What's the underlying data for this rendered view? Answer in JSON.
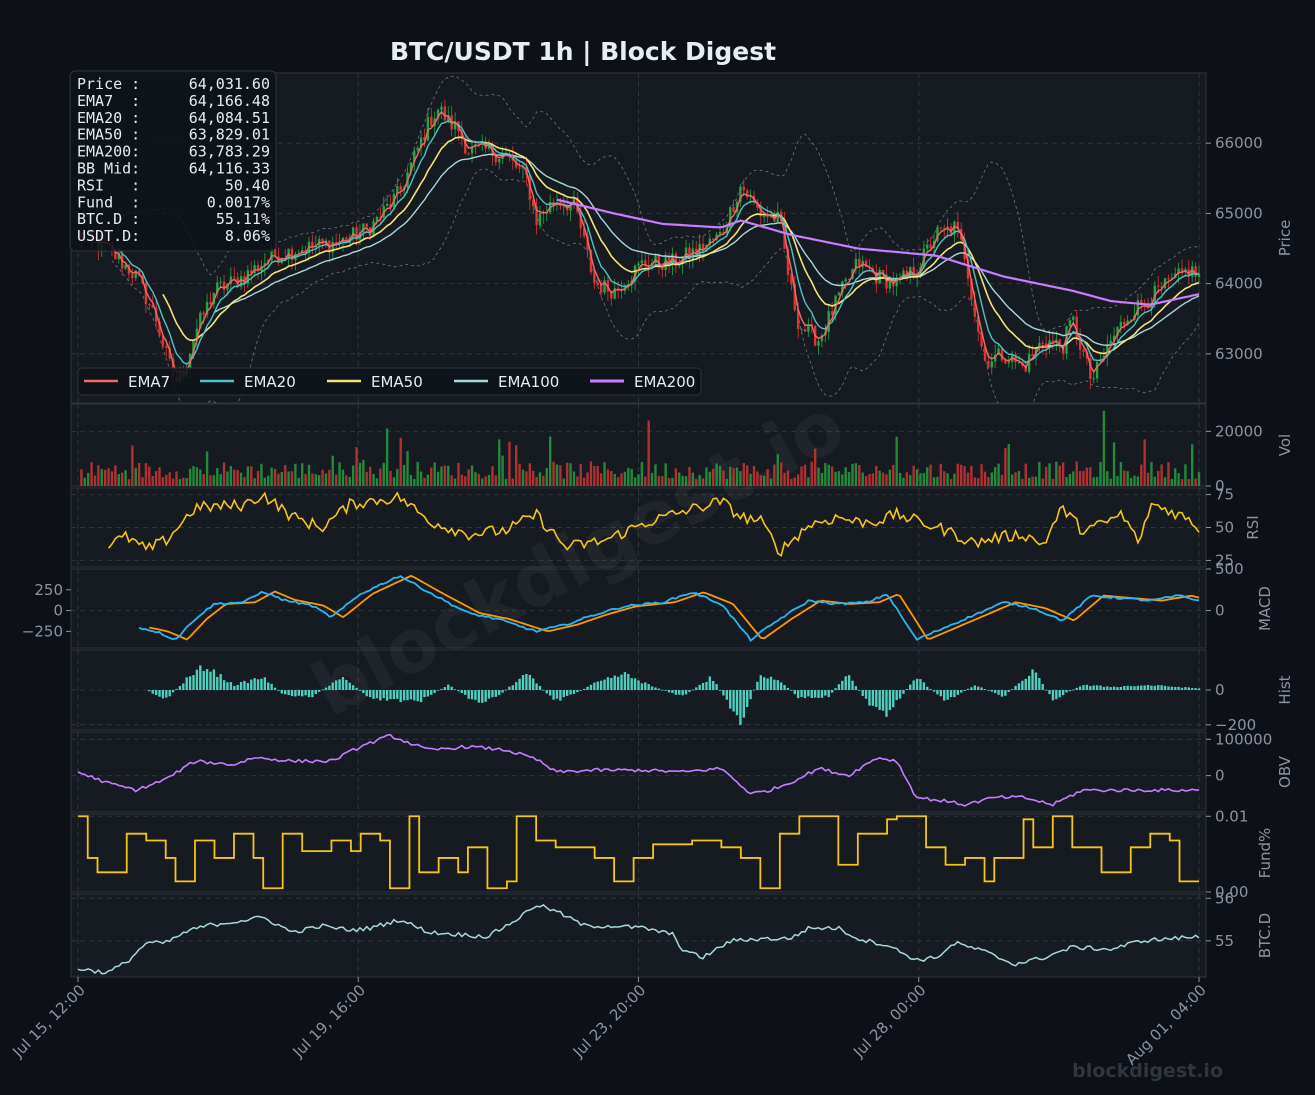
{
  "chart_data": {
    "type": "line",
    "title": "BTC/USDT  1h  |  Block Digest",
    "watermark": "blockdigest.io",
    "footer": "blockdigest.io",
    "x_ticks": [
      "Jul 15, 12:00",
      "Jul 19, 16:00",
      "Jul 23, 20:00",
      "Jul 28, 00:00",
      "Aug 01, 04:00"
    ],
    "info_box": [
      {
        "label": "Price :",
        "value": "64,031.60"
      },
      {
        "label": "EMA7  :",
        "value": "64,166.48"
      },
      {
        "label": "EMA20 :",
        "value": "64,084.51"
      },
      {
        "label": "EMA50 :",
        "value": "63,829.01"
      },
      {
        "label": "EMA200:",
        "value": "63,783.29"
      },
      {
        "label": "BB Mid:",
        "value": "64,116.33"
      },
      {
        "label": "RSI   :",
        "value": "50.40"
      },
      {
        "label": "Fund  :",
        "value": "0.0017%"
      },
      {
        "label": "BTC.D :",
        "value": "55.11%"
      },
      {
        "label": "USDT.D:",
        "value": "8.06%"
      }
    ],
    "legend": [
      {
        "name": "EMA7",
        "color": "#f06a6a"
      },
      {
        "name": "EMA20",
        "color": "#4fc3c3"
      },
      {
        "name": "EMA50",
        "color": "#f5e27a"
      },
      {
        "name": "EMA100",
        "color": "#a8d8d8"
      },
      {
        "name": "EMA200",
        "color": "#c77dff"
      }
    ],
    "panels": [
      {
        "key": "price",
        "ylabel": "Price",
        "ylim": [
          62300,
          67000
        ],
        "ticks": [
          "63000",
          "64000",
          "65000",
          "66000"
        ],
        "side": "right"
      },
      {
        "key": "vol",
        "ylabel": "Vol",
        "ylim": [
          0,
          30000
        ],
        "ticks": [
          "0",
          "20000"
        ],
        "side": "right"
      },
      {
        "key": "rsi",
        "ylabel": "RSI",
        "ylim": [
          20,
          80
        ],
        "ticks": [
          "25",
          "50",
          "75"
        ],
        "side": "right"
      },
      {
        "key": "macd",
        "ylabel": "MACD",
        "ylim": [
          -450,
          500
        ],
        "ticks": [
          "0",
          "500"
        ],
        "left_ticks": [
          "250",
          "0",
          "−250"
        ],
        "side": "right"
      },
      {
        "key": "hist",
        "ylabel": "Hist",
        "ylim": [
          -230,
          230
        ],
        "ticks": [
          "0",
          "−200"
        ],
        "side": "right"
      },
      {
        "key": "obv",
        "ylabel": "OBV",
        "ylim": [
          -100000,
          120000
        ],
        "ticks": [
          "100000",
          "0"
        ],
        "side": "right"
      },
      {
        "key": "fund",
        "ylabel": "Fund%",
        "ylim": [
          0,
          0.0103
        ],
        "ticks": [
          "0.01",
          "0.00"
        ],
        "side": "right"
      },
      {
        "key": "btcd",
        "ylabel": "BTC.D",
        "ylim": [
          54.15,
          56.1
        ],
        "ticks": [
          "56",
          "55"
        ],
        "side": "right"
      }
    ],
    "price_kp": [
      [
        0,
        64700
      ],
      [
        3,
        64500
      ],
      [
        6,
        64100
      ],
      [
        8,
        63500
      ],
      [
        9,
        63000
      ],
      [
        10,
        62600
      ],
      [
        11,
        62800
      ],
      [
        12,
        63300
      ],
      [
        14,
        63900
      ],
      [
        17,
        64100
      ],
      [
        20,
        64400
      ],
      [
        23,
        64500
      ],
      [
        27,
        64600
      ],
      [
        30,
        64800
      ],
      [
        33,
        65300
      ],
      [
        36,
        66300
      ],
      [
        37,
        66500
      ],
      [
        38,
        66300
      ],
      [
        39,
        66200
      ],
      [
        40,
        65900
      ],
      [
        42,
        65900
      ],
      [
        44,
        65800
      ],
      [
        46,
        65500
      ],
      [
        47,
        64900
      ],
      [
        49,
        65200
      ],
      [
        51,
        65100
      ],
      [
        53,
        64000
      ],
      [
        55,
        63900
      ],
      [
        58,
        64300
      ],
      [
        61,
        64300
      ],
      [
        64,
        64500
      ],
      [
        66,
        64700
      ],
      [
        68,
        65400
      ],
      [
        70,
        65000
      ],
      [
        72,
        64900
      ],
      [
        73,
        64000
      ],
      [
        74,
        63400
      ],
      [
        76,
        63200
      ],
      [
        78,
        63800
      ],
      [
        80,
        64300
      ],
      [
        82,
        64100
      ],
      [
        84,
        64000
      ],
      [
        86,
        64200
      ],
      [
        88,
        64700
      ],
      [
        90,
        64800
      ],
      [
        91,
        64400
      ],
      [
        92,
        63600
      ],
      [
        93,
        62900
      ],
      [
        95,
        63000
      ],
      [
        97,
        62800
      ],
      [
        99,
        63200
      ],
      [
        101,
        63100
      ],
      [
        102,
        63500
      ],
      [
        104,
        62600
      ],
      [
        106,
        63200
      ],
      [
        108,
        63600
      ],
      [
        110,
        63800
      ],
      [
        112,
        64000
      ],
      [
        114,
        64200
      ],
      [
        115,
        64100
      ]
    ],
    "ema200_kp": [
      [
        49,
        65200
      ],
      [
        55,
        65000
      ],
      [
        60,
        64850
      ],
      [
        66,
        64800
      ],
      [
        68,
        64900
      ],
      [
        73,
        64700
      ],
      [
        80,
        64500
      ],
      [
        88,
        64400
      ],
      [
        95,
        64100
      ],
      [
        102,
        63900
      ],
      [
        106,
        63750
      ],
      [
        110,
        63700
      ],
      [
        115,
        63850
      ]
    ],
    "rsi_kp": [
      [
        3,
        37
      ],
      [
        5,
        43
      ],
      [
        7,
        33
      ],
      [
        9,
        40
      ],
      [
        12,
        65
      ],
      [
        17,
        67
      ],
      [
        19,
        75
      ],
      [
        22,
        58
      ],
      [
        25,
        50
      ],
      [
        28,
        68
      ],
      [
        33,
        73
      ],
      [
        36,
        55
      ],
      [
        40,
        45
      ],
      [
        44,
        48
      ],
      [
        47,
        60
      ],
      [
        50,
        35
      ],
      [
        54,
        40
      ],
      [
        58,
        53
      ],
      [
        62,
        62
      ],
      [
        66,
        70
      ],
      [
        68,
        58
      ],
      [
        70,
        55
      ],
      [
        72,
        32
      ],
      [
        75,
        52
      ],
      [
        78,
        58
      ],
      [
        80,
        54
      ],
      [
        82,
        55
      ],
      [
        84,
        60
      ],
      [
        86,
        55
      ],
      [
        89,
        48
      ],
      [
        92,
        38
      ],
      [
        94,
        42
      ],
      [
        97,
        45
      ],
      [
        99,
        37
      ],
      [
        101,
        65
      ],
      [
        103,
        48
      ],
      [
        105,
        52
      ],
      [
        107,
        60
      ],
      [
        109,
        38
      ],
      [
        110,
        68
      ],
      [
        113,
        60
      ],
      [
        115,
        50
      ]
    ],
    "macd_kp": [
      [
        6,
        -200
      ],
      [
        8,
        -250
      ],
      [
        10,
        -350
      ],
      [
        12,
        -100
      ],
      [
        14,
        80
      ],
      [
        17,
        100
      ],
      [
        19,
        230
      ],
      [
        21,
        130
      ],
      [
        24,
        60
      ],
      [
        26,
        -80
      ],
      [
        29,
        200
      ],
      [
        33,
        420
      ],
      [
        36,
        220
      ],
      [
        40,
        -30
      ],
      [
        43,
        -100
      ],
      [
        47,
        -250
      ],
      [
        50,
        -170
      ],
      [
        53,
        -50
      ],
      [
        56,
        50
      ],
      [
        60,
        100
      ],
      [
        63,
        220
      ],
      [
        66,
        80
      ],
      [
        69,
        -350
      ],
      [
        72,
        -100
      ],
      [
        75,
        120
      ],
      [
        78,
        80
      ],
      [
        81,
        100
      ],
      [
        83,
        200
      ],
      [
        86,
        -350
      ],
      [
        89,
        -200
      ],
      [
        92,
        -50
      ],
      [
        95,
        100
      ],
      [
        98,
        30
      ],
      [
        101,
        -120
      ],
      [
        104,
        180
      ],
      [
        107,
        150
      ],
      [
        110,
        120
      ],
      [
        113,
        180
      ],
      [
        115,
        120
      ]
    ],
    "hist_kp": [
      [
        7,
        0
      ],
      [
        9,
        -60
      ],
      [
        11,
        60
      ],
      [
        13,
        150
      ],
      [
        16,
        30
      ],
      [
        19,
        80
      ],
      [
        21,
        -30
      ],
      [
        24,
        -40
      ],
      [
        27,
        80
      ],
      [
        30,
        -50
      ],
      [
        32,
        -60
      ],
      [
        35,
        -70
      ],
      [
        38,
        30
      ],
      [
        41,
        -80
      ],
      [
        43,
        -40
      ],
      [
        46,
        100
      ],
      [
        49,
        -70
      ],
      [
        51,
        -20
      ],
      [
        53,
        40
      ],
      [
        56,
        100
      ],
      [
        59,
        20
      ],
      [
        62,
        -40
      ],
      [
        65,
        80
      ],
      [
        68,
        -200
      ],
      [
        70,
        100
      ],
      [
        72,
        60
      ],
      [
        74,
        -50
      ],
      [
        77,
        -40
      ],
      [
        79,
        100
      ],
      [
        81,
        -80
      ],
      [
        83,
        -150
      ],
      [
        86,
        80
      ],
      [
        89,
        -70
      ],
      [
        92,
        30
      ],
      [
        95,
        -40
      ],
      [
        98,
        120
      ],
      [
        100,
        -60
      ],
      [
        103,
        30
      ],
      [
        106,
        20
      ],
      [
        110,
        30
      ],
      [
        115,
        10
      ]
    ],
    "obv_kp": [
      [
        0,
        10000
      ],
      [
        3,
        -20000
      ],
      [
        6,
        -40000
      ],
      [
        9,
        -10000
      ],
      [
        12,
        40000
      ],
      [
        16,
        30000
      ],
      [
        18,
        50000
      ],
      [
        22,
        40000
      ],
      [
        26,
        40000
      ],
      [
        29,
        80000
      ],
      [
        32,
        110000
      ],
      [
        36,
        70000
      ],
      [
        40,
        80000
      ],
      [
        44,
        70000
      ],
      [
        47,
        45000
      ],
      [
        49,
        10000
      ],
      [
        53,
        15000
      ],
      [
        58,
        15000
      ],
      [
        62,
        10000
      ],
      [
        66,
        20000
      ],
      [
        69,
        -50000
      ],
      [
        71,
        -40000
      ],
      [
        73,
        -20000
      ],
      [
        76,
        20000
      ],
      [
        79,
        0
      ],
      [
        82,
        50000
      ],
      [
        84,
        40000
      ],
      [
        86,
        -60000
      ],
      [
        89,
        -70000
      ],
      [
        91,
        -80000
      ],
      [
        94,
        -60000
      ],
      [
        97,
        -60000
      ],
      [
        100,
        -80000
      ],
      [
        103,
        -40000
      ],
      [
        106,
        -40000
      ],
      [
        110,
        -40000
      ],
      [
        115,
        -40000
      ]
    ],
    "fund_steps": [
      [
        0,
        0.01
      ],
      [
        1,
        0.0045
      ],
      [
        2,
        0.0026
      ],
      [
        5,
        0.0077
      ],
      [
        7,
        0.0068
      ],
      [
        9,
        0.0045
      ],
      [
        10,
        0.0014
      ],
      [
        12,
        0.0068
      ],
      [
        14,
        0.0045
      ],
      [
        16,
        0.0077
      ],
      [
        18,
        0.0045
      ],
      [
        19,
        0.0005
      ],
      [
        21,
        0.0077
      ],
      [
        23,
        0.0054
      ],
      [
        26,
        0.0068
      ],
      [
        28,
        0.0054
      ],
      [
        29,
        0.0077
      ],
      [
        31,
        0.0068
      ],
      [
        32,
        0.0005
      ],
      [
        34,
        0.01
      ],
      [
        35,
        0.0026
      ],
      [
        36,
        0.0026
      ],
      [
        37,
        0.0045
      ],
      [
        39,
        0.0026
      ],
      [
        40,
        0.0059
      ],
      [
        41,
        0.0059
      ],
      [
        42,
        0.0005
      ],
      [
        44,
        0.0014
      ],
      [
        45,
        0.01
      ],
      [
        47,
        0.0068
      ],
      [
        49,
        0.0059
      ],
      [
        53,
        0.0045
      ],
      [
        55,
        0.0014
      ],
      [
        57,
        0.0045
      ],
      [
        59,
        0.0063
      ],
      [
        63,
        0.0068
      ],
      [
        66,
        0.0059
      ],
      [
        68,
        0.0045
      ],
      [
        70,
        0.0005
      ],
      [
        72,
        0.0077
      ],
      [
        74,
        0.01
      ],
      [
        78,
        0.0036
      ],
      [
        80,
        0.0077
      ],
      [
        83,
        0.0096
      ],
      [
        84,
        0.01
      ],
      [
        87,
        0.0059
      ],
      [
        89,
        0.0036
      ],
      [
        91,
        0.0045
      ],
      [
        93,
        0.0014
      ],
      [
        94,
        0.0045
      ],
      [
        97,
        0.0096
      ],
      [
        98,
        0.0059
      ],
      [
        100,
        0.01
      ],
      [
        102,
        0.0059
      ],
      [
        105,
        0.0026
      ],
      [
        108,
        0.0059
      ],
      [
        110,
        0.0077
      ],
      [
        112,
        0.0068
      ],
      [
        113,
        0.0014
      ],
      [
        115,
        0.0014
      ]
    ],
    "btcd_kp": [
      [
        0,
        54.35
      ],
      [
        3,
        54.25
      ],
      [
        5,
        54.5
      ],
      [
        7,
        54.95
      ],
      [
        9,
        54.95
      ],
      [
        11,
        55.2
      ],
      [
        13,
        55.35
      ],
      [
        16,
        55.45
      ],
      [
        19,
        55.55
      ],
      [
        22,
        55.2
      ],
      [
        25,
        55.35
      ],
      [
        28,
        55.25
      ],
      [
        30,
        55.3
      ],
      [
        33,
        55.5
      ],
      [
        36,
        55.2
      ],
      [
        39,
        55.15
      ],
      [
        42,
        55.1
      ],
      [
        45,
        55.5
      ],
      [
        47,
        55.85
      ],
      [
        49,
        55.7
      ],
      [
        52,
        55.35
      ],
      [
        55,
        55.35
      ],
      [
        58,
        55.3
      ],
      [
        61,
        55.15
      ],
      [
        62,
        54.8
      ],
      [
        64,
        54.6
      ],
      [
        67,
        55.0
      ],
      [
        70,
        55.05
      ],
      [
        73,
        55.05
      ],
      [
        75,
        55.3
      ],
      [
        78,
        55.3
      ],
      [
        80,
        55.05
      ],
      [
        83,
        54.9
      ],
      [
        86,
        54.55
      ],
      [
        88,
        54.6
      ],
      [
        90,
        54.95
      ],
      [
        93,
        54.75
      ],
      [
        96,
        54.45
      ],
      [
        99,
        54.6
      ],
      [
        102,
        54.85
      ],
      [
        106,
        54.8
      ],
      [
        109,
        55.0
      ],
      [
        112,
        55.05
      ],
      [
        115,
        55.1
      ]
    ]
  },
  "colors": {
    "bg": "#0d1117",
    "panel": "#161b22",
    "grid": "#30363d",
    "up": "#26a641",
    "down": "#da3633",
    "rsi": "#f5c518",
    "macd": "#29b6f6",
    "signal": "#ff9800",
    "hist": "#4dd0c0",
    "obv": "#c77dff",
    "fund": "#f5c518",
    "btcd": "#a8d8d8",
    "bb": "#6e7681"
  }
}
